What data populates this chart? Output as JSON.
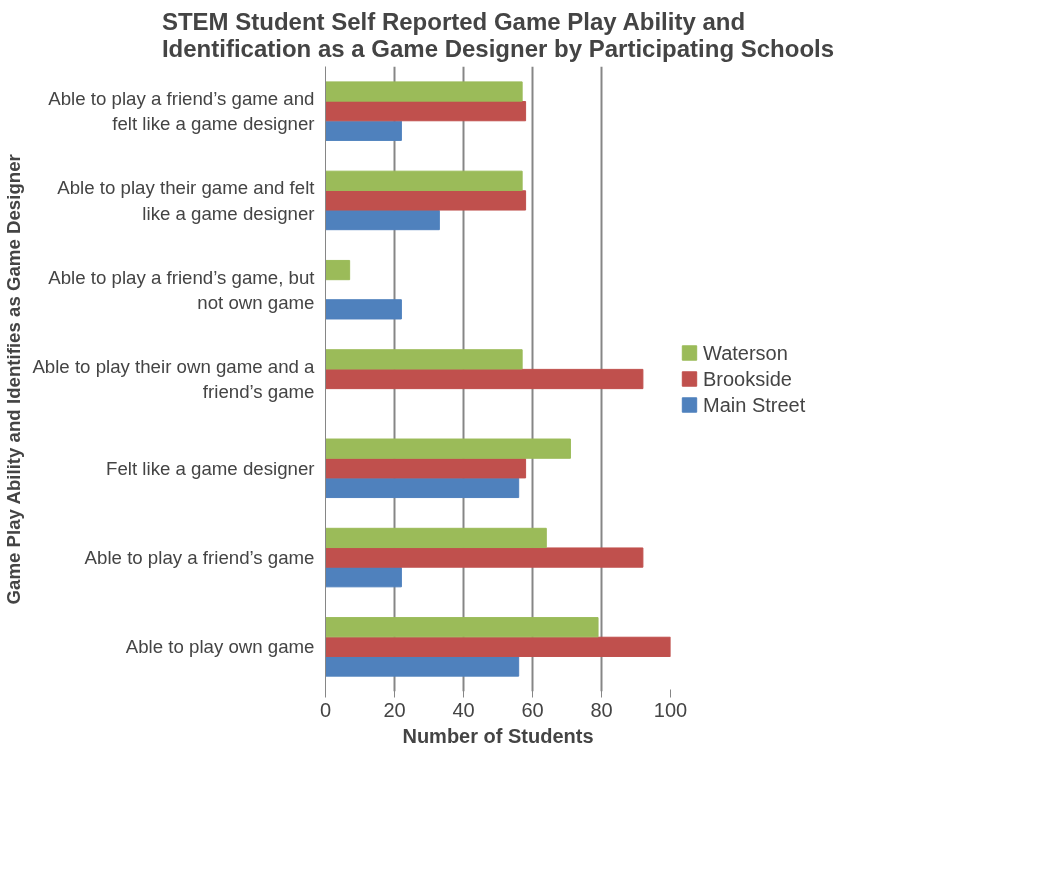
{
  "chart_data": {
    "type": "bar",
    "orientation": "horizontal",
    "title": "STEM Student Self Reported Game Play Ability and Identification as a Game Designer by Participating Schools",
    "xlabel": "Number of Students",
    "ylabel": "Game Play Ability and Identifies as Game Designer",
    "categories": [
      "Able to play a friend’s game and felt like a game designer",
      "Able to play their game and felt like a game designer",
      "Able to play a friend’s game, but not own game",
      "Able to play their own game and a friend’s game",
      "Felt like a game designer",
      "Able to play a friend’s game",
      "Able to play own game"
    ],
    "series": [
      {
        "name": "Main Street",
        "color": "#4f81bd",
        "values": [
          22,
          33,
          22,
          null,
          56,
          22,
          56
        ]
      },
      {
        "name": "Brookside",
        "color": "#c0504d",
        "values": [
          58,
          58,
          null,
          92,
          58,
          92,
          100
        ]
      },
      {
        "name": "Waterson",
        "color": "#9bbb59",
        "values": [
          57,
          57,
          7,
          57,
          71,
          64,
          79
        ]
      }
    ],
    "xlim": [
      0,
      100
    ],
    "xticks": [
      0,
      20,
      40,
      60,
      80,
      100
    ],
    "grid": "x",
    "legend": "right"
  }
}
